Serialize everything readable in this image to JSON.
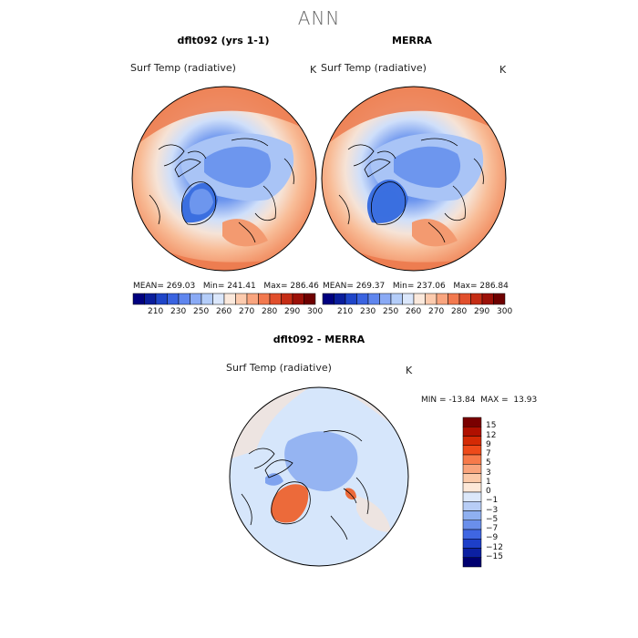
{
  "page_title": "ANN",
  "panels": [
    {
      "title": "dflt092 (yrs 1-1)",
      "variable": "Surf Temp (radiative)",
      "unit": "K",
      "mean_label": "MEAN=",
      "mean": "269.03",
      "min_label": "Min=",
      "min": "241.41",
      "max_label": "Max=",
      "max": "286.46"
    },
    {
      "title": "MERRA",
      "variable": "Surf Temp (radiative)",
      "unit": "K",
      "mean_label": "MEAN=",
      "mean": "269.37",
      "min_label": "Min=",
      "min": "237.06",
      "max_label": "Max=",
      "max": "286.84"
    }
  ],
  "abs_colorbar": {
    "colors": [
      "#00007f",
      "#0a1e9c",
      "#1f45c8",
      "#3a63e0",
      "#5f86ee",
      "#8aaaf5",
      "#b4cdf9",
      "#dbe7fb",
      "#fbe9dc",
      "#fccbae",
      "#f9a57f",
      "#f2794f",
      "#e14f2c",
      "#c52d15",
      "#9c1108",
      "#6e0000"
    ],
    "tick_labels": [
      "210",
      "230",
      "250",
      "260",
      "270",
      "280",
      "290",
      "300"
    ]
  },
  "diff_panel": {
    "title": "dflt092 - MERRA",
    "variable": "Surf Temp (radiative)",
    "unit": "K",
    "min_label": "MIN =",
    "min": "-13.84",
    "max_label": "MAX =",
    "max": "13.93"
  },
  "diff_colorbar": {
    "colors": [
      "#7a0000",
      "#b01000",
      "#d42a05",
      "#ee4a1a",
      "#f77a4a",
      "#f9a47c",
      "#fbc9a8",
      "#fde8d8",
      "#dce8fa",
      "#b7cdf6",
      "#8fb0f0",
      "#6a8feb",
      "#3f66e2",
      "#1d3fc9",
      "#0c20a2",
      "#000070"
    ],
    "tick_labels": [
      "15",
      "12",
      "9",
      "7",
      "5",
      "3",
      "1",
      "0",
      "−1",
      "−3",
      "−5",
      "−7",
      "−9",
      "−12",
      "−15"
    ]
  },
  "map_colors": {
    "ice_core": "#3b6fe0",
    "ice_mid": "#6d96ee",
    "polar": "#a9c4f6",
    "sub_polar": "#cfdffa",
    "neutral": "#f6e3d6",
    "warm1": "#f8bd98",
    "warm2": "#f39a70",
    "warm3": "#ec7a4e",
    "diff_bg": "#d6e6fb",
    "diff_pos": "#ec6a3a",
    "diff_neg": "#7fa3ef"
  }
}
